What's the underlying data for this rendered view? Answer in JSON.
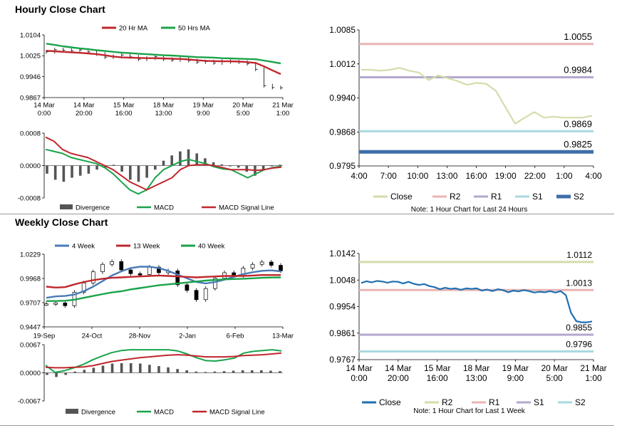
{
  "sections": {
    "hourly_title": "Hourly Close Chart",
    "weekly_title": "Weekly Close Chart"
  },
  "chart_data": [
    {
      "id": "hourly-price",
      "type": "line",
      "title": "Hourly Close Chart",
      "ylim": [
        0.9867,
        1.0104
      ],
      "y_ticks": [
        "1.0104",
        "1.0025",
        "0.9946",
        "0.9867"
      ],
      "x_tick_labels": [
        [
          "14 Mar",
          "0:00"
        ],
        [
          "14 Mar",
          "20:00"
        ],
        [
          "15 Mar",
          "16:00"
        ],
        [
          "18 Mar",
          "13:00"
        ],
        [
          "19 Mar",
          "9:00"
        ],
        [
          "20 Mar",
          "5:00"
        ],
        [
          "21 Mar",
          "1:00"
        ]
      ],
      "series": [
        {
          "name": "20 Hr MA",
          "color": "#c0272d",
          "values": [
            1.0044,
            1.0042,
            1.004,
            1.0038,
            1.0036,
            1.0034,
            1.0031,
            1.0027,
            1.0022,
            1.0019,
            1.0018,
            1.0017,
            1.0016,
            1.0016,
            1.0015,
            1.0014,
            1.0013,
            1.0011,
            1.0008,
            1.0006,
            1.0005,
            1.0004,
            1.0004,
            1.0003,
            1.0001,
            0.9998,
            0.9985,
            0.997,
            0.9956
          ]
        },
        {
          "name": "50 Hrs MA",
          "color": "#1aa34a",
          "values": [
            1.0071,
            1.0066,
            1.0061,
            1.0057,
            1.0053,
            1.005,
            1.0046,
            1.0043,
            1.004,
            1.0037,
            1.0035,
            1.0033,
            1.0031,
            1.0029,
            1.0027,
            1.0026,
            1.0024,
            1.0022,
            1.002,
            1.0019,
            1.0018,
            1.0016,
            1.0015,
            1.0014,
            1.0013,
            1.0012,
            1.0007,
            1.0002,
            0.9996
          ]
        },
        {
          "name": "Close",
          "color": "#000000",
          "values": [
            1.004,
            1.0048,
            1.0046,
            1.0044,
            1.0047,
            1.004,
            1.0032,
            1.002,
            1.0023,
            1.0028,
            1.0021,
            1.0012,
            1.0016,
            1.0022,
            1.0012,
            1.0009,
            1.0014,
            1.0007,
            1.0001,
            1.0003,
            0.9998,
            1.0005,
            1.0002,
            1.0001,
            0.9995,
            0.9974,
            0.9912,
            0.9905,
            0.9904
          ]
        }
      ]
    },
    {
      "id": "hourly-macd",
      "type": "line",
      "ylim": [
        -0.0008,
        0.0008
      ],
      "y_ticks": [
        "0.0008",
        "0.0000",
        "-0.0008"
      ],
      "series": [
        {
          "name": "Divergence",
          "color": "#555555",
          "values": [
            -0.0002,
            -0.00035,
            -0.0004,
            -0.0003,
            -0.00025,
            -0.0002,
            -0.0001,
            -5e-05,
            2e-05,
            -0.00015,
            -0.00035,
            -0.0004,
            -0.0003,
            -0.0001,
            0.00012,
            0.00025,
            0.00035,
            0.0004,
            0.0003,
            0.00018,
            8e-05,
            3e-05,
            -2e-05,
            -5e-05,
            -0.00015,
            -0.00025,
            -0.0001,
            -2e-05,
            2e-05
          ]
        },
        {
          "name": "MACD",
          "color": "#1aa34a",
          "values": [
            0.0004,
            0.00035,
            0.0003,
            0.0002,
            0.00015,
            0.0001,
            5e-05,
            -5e-05,
            -0.0002,
            -0.0004,
            -0.0006,
            -0.0007,
            -0.0006,
            -0.0003,
            -0.0001,
            0.0,
            0.0001,
            0.00015,
            0.0001,
            5e-05,
            -3e-05,
            -8e-05,
            -0.0001,
            -0.0002,
            -0.0003,
            -0.0002,
            -0.0001,
            -5e-05,
            -2e-05
          ]
        },
        {
          "name": "MACD Signal Line",
          "color": "#c0272d",
          "values": [
            0.0007,
            0.0006,
            0.0004,
            0.0003,
            0.00025,
            0.0002,
            0.0001,
            0.0,
            -0.0001,
            -0.00025,
            -0.0004,
            -0.0005,
            -0.0006,
            -0.0005,
            -0.0004,
            -0.0003,
            -0.0001,
            0.0,
            2e-05,
            2e-05,
            0.0,
            -5e-05,
            -0.0001,
            -0.0001,
            -0.0001,
            -0.00012,
            -0.0001,
            -6e-05,
            -4e-05
          ]
        }
      ],
      "legend": [
        "Divergence",
        "MACD",
        "MACD Signal Line"
      ]
    },
    {
      "id": "hourly-pivot",
      "type": "line",
      "ylim": [
        0.9795,
        1.0085
      ],
      "y_ticks": [
        "1.0085",
        "1.0012",
        "0.9940",
        "0.9868",
        "0.9795"
      ],
      "x_tick_labels": [
        "4:00",
        "7:00",
        "10:00",
        "13:00",
        "16:00",
        "19:00",
        "22:00",
        "1:00",
        "4:00"
      ],
      "levels": [
        {
          "name": "R2",
          "value": 1.0055,
          "label": "1.0055",
          "color": "#e8b5b4"
        },
        {
          "name": "R1",
          "value": 0.9984,
          "label": "0.9984",
          "color": "#b4a7cd"
        },
        {
          "name": "S1",
          "value": 0.9869,
          "label": "0.9869",
          "color": "#a9d9de"
        },
        {
          "name": "S2",
          "value": 0.9825,
          "label": "0.9825",
          "color": "#3d6ea9"
        }
      ],
      "series": [
        {
          "name": "Close",
          "color": "#d1deab",
          "values": [
            1.0,
            1.0,
            0.9998,
            1.0,
            1.0004,
            0.9998,
            0.9994,
            0.9978,
            0.9988,
            0.9982,
            0.9976,
            0.9968,
            0.9972,
            0.997,
            0.9955,
            0.992,
            0.9885,
            0.9898,
            0.991,
            0.9898,
            0.99,
            0.9898,
            0.9898,
            0.9898,
            0.9902
          ]
        }
      ],
      "legend": [
        "Close",
        "R2",
        "R1",
        "S1",
        "S2"
      ],
      "note": "Note: 1 Hour Chart for Last 24 Hours"
    },
    {
      "id": "weekly-price",
      "type": "line",
      "title": "Weekly Close Chart",
      "ylim": [
        0.9447,
        1.0229
      ],
      "y_ticks": [
        "1.0229",
        "0.9968",
        "0.9707",
        "0.9447"
      ],
      "x_tick_labels": [
        "19-Sep",
        "24-Oct",
        "28-Nov",
        "2-Jan",
        "6-Feb",
        "13-Mar"
      ],
      "series": [
        {
          "name": "4 Week",
          "color": "#4a7ab7",
          "values": [
            0.976,
            0.9775,
            0.978,
            0.9795,
            0.983,
            0.988,
            0.994,
            1.0,
            1.0045,
            1.008,
            1.0095,
            1.0095,
            1.008,
            1.005,
            1.001,
            0.997,
            0.993,
            0.9915,
            0.993,
            0.9955,
            0.9985,
            1.0015,
            1.0035,
            1.005,
            1.0055,
            1.0045
          ]
        },
        {
          "name": "13 Week",
          "color": "#c0272d",
          "values": [
            0.988,
            0.987,
            0.9875,
            0.9905,
            0.993,
            0.995,
            0.9965,
            0.9975,
            0.998,
            0.9985,
            0.999,
            0.9995,
            1.0,
            0.9995,
            0.999,
            0.9985,
            0.998,
            0.9985,
            0.999,
            0.9995,
            0.9995,
            0.9995,
            1.0,
            1.0005,
            1.0005,
            1.0005
          ]
        },
        {
          "name": "40 Week",
          "color": "#1aa34a",
          "values": [
            0.9725,
            0.9725,
            0.9728,
            0.974,
            0.976,
            0.978,
            0.98,
            0.9818,
            0.983,
            0.985,
            0.9865,
            0.988,
            0.9895,
            0.9905,
            0.9915,
            0.9925,
            0.9935,
            0.9945,
            0.9952,
            0.9958,
            0.9962,
            0.9965,
            0.997,
            0.9975,
            0.9978,
            0.998
          ]
        },
        {
          "name": "Close",
          "color": "#000000",
          "values": [
            0.9695,
            0.9705,
            0.9675,
            0.982,
            0.992,
            1.004,
            1.012,
            1.015,
            1.006,
            1.002,
            1.001,
            1.009,
            1.003,
            1.005,
            0.99,
            0.984,
            0.974,
            0.986,
            0.997,
            1.003,
            1.0,
            1.008,
            1.012,
            1.0145,
            1.011,
            1.005
          ]
        }
      ]
    },
    {
      "id": "weekly-macd",
      "type": "line",
      "ylim": [
        -0.0067,
        0.0067
      ],
      "y_ticks": [
        "0.0067",
        "0.0000",
        "-0.0067"
      ],
      "series": [
        {
          "name": "Divergence",
          "color": "#555555",
          "values": [
            -0.0005,
            -0.001,
            -0.0005,
            0.0003,
            0.0007,
            0.0012,
            0.0017,
            0.0022,
            0.0023,
            0.0023,
            0.0022,
            0.0019,
            0.0016,
            0.0013,
            0.0009,
            0.0006,
            0.0003,
            0.0002,
            0.0003,
            0.0004,
            0.0005,
            0.0006,
            0.0006,
            0.0006,
            0.0005,
            0.0004
          ]
        },
        {
          "name": "MACD",
          "color": "#1aa34a",
          "values": [
            0.0018,
            0.0001,
            0.0005,
            0.0012,
            0.002,
            0.0031,
            0.004,
            0.0048,
            0.0053,
            0.0055,
            0.0055,
            0.0055,
            0.0055,
            0.0055,
            0.0052,
            0.0045,
            0.0036,
            0.0029,
            0.0028,
            0.0031,
            0.0035,
            0.0047,
            0.0051,
            0.0053,
            0.0055,
            0.0052
          ]
        },
        {
          "name": "MACD Signal Line",
          "color": "#c0272d",
          "values": [
            0.0013,
            0.0012,
            0.0012,
            0.0013,
            0.0014,
            0.0017,
            0.0022,
            0.0027,
            0.003,
            0.0033,
            0.0036,
            0.0038,
            0.004,
            0.0042,
            0.0043,
            0.0042,
            0.004,
            0.0038,
            0.0038,
            0.0038,
            0.0039,
            0.0041,
            0.0042,
            0.0043,
            0.0045,
            0.0047
          ]
        }
      ],
      "legend": [
        "Divergence",
        "MACD",
        "MACD Signal Line"
      ]
    },
    {
      "id": "weekly-pivot",
      "type": "line",
      "ylim": [
        0.9767,
        1.0142
      ],
      "y_ticks": [
        "1.0142",
        "1.0048",
        "0.9954",
        "0.9861",
        "0.9767"
      ],
      "x_tick_labels": [
        [
          "14 Mar",
          "0:00"
        ],
        [
          "14 Mar",
          "20:00"
        ],
        [
          "15 Mar",
          "16:00"
        ],
        [
          "18 Mar",
          "13:00"
        ],
        [
          "19 Mar",
          "9:00"
        ],
        [
          "20 Mar",
          "5:00"
        ],
        [
          "21 Mar",
          "1:00"
        ]
      ],
      "levels": [
        {
          "name": "R2",
          "value": 1.0112,
          "label": "1.0112",
          "color": "#d1deab"
        },
        {
          "name": "R1",
          "value": 1.0013,
          "label": "1.0013",
          "color": "#e8b5b4"
        },
        {
          "name": "S1",
          "value": 0.9855,
          "label": "0.9855",
          "color": "#b4a7cd"
        },
        {
          "name": "S2",
          "value": 0.9796,
          "label": "0.9796",
          "color": "#a9d9de"
        }
      ],
      "series": [
        {
          "name": "Close",
          "color": "#1f6fb2",
          "values": [
            1.0038,
            1.0044,
            1.004,
            1.0045,
            1.0043,
            1.0039,
            1.0043,
            1.0042,
            1.0036,
            1.0042,
            1.0035,
            1.0031,
            1.0034,
            1.0027,
            1.0023,
            1.0016,
            1.0021,
            1.0017,
            1.0019,
            1.0014,
            1.0019,
            1.0017,
            1.0019,
            1.0011,
            1.0015,
            1.0009,
            1.0016,
            1.0013,
            1.0005,
            1.0011,
            1.0008,
            1.0013,
            1.0009,
            1.0004,
            1.0007,
            1.0005,
            1.0009,
            1.0004,
            1.0009,
            0.9995,
            0.9932,
            0.9903,
            0.9899,
            0.9899,
            0.9902
          ]
        }
      ],
      "legend": [
        "Close",
        "R2",
        "R1",
        "S1",
        "S2"
      ],
      "note": "Note: 1 Hour Chart for Last 1 Week"
    }
  ]
}
